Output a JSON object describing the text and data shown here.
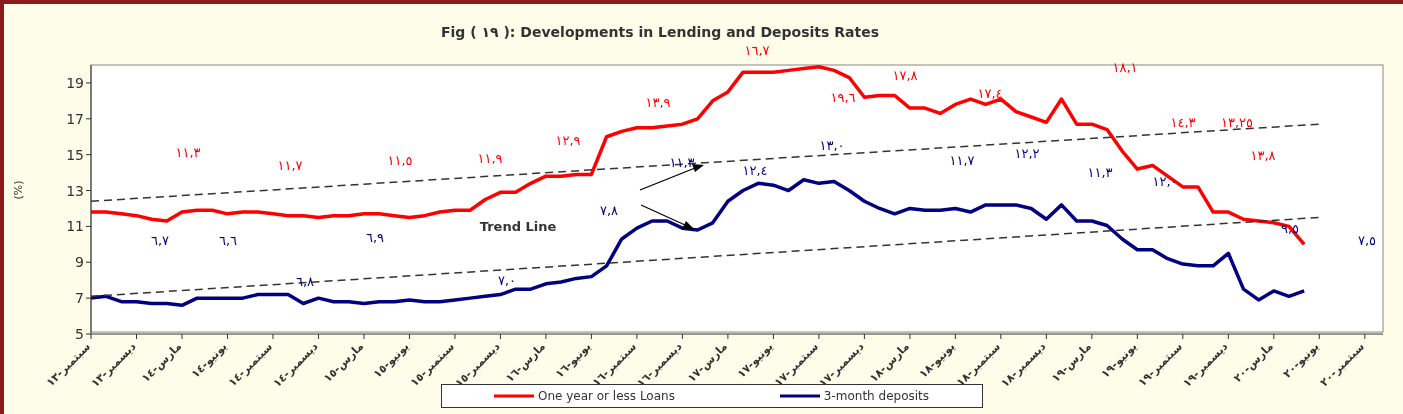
{
  "chart_data": {
    "type": "line",
    "title": "Fig ( ١٩ ): Developments in Lending and Deposits Rates",
    "ylabel": "(%)",
    "categories": [
      "سبتمبر-١٣",
      null,
      null,
      "ديسمبر-١٣",
      null,
      null,
      "مارس-١٤",
      null,
      null,
      "يونيو-١٤",
      null,
      null,
      "سبتمبر-١٤",
      null,
      null,
      "ديسمبر-١٤",
      null,
      null,
      "مارس-١٥",
      null,
      null,
      "يونيو-١٥",
      null,
      null,
      "سبتمبر-١٥",
      null,
      null,
      "ديسمبر-١٥",
      null,
      null,
      "مارس-١٦",
      null,
      null,
      "يونيو-١٦",
      null,
      null,
      "سبتمبر-١٦",
      null,
      null,
      "ديسمبر-١٦",
      null,
      null,
      "مارس-١٧",
      null,
      null,
      "يونيو-١٧",
      null,
      null,
      "سبتمبر-١٧",
      null,
      null,
      "ديسمبر-١٧",
      null,
      null,
      "مارس-١٨",
      null,
      null,
      "يونيو-١٨",
      null,
      null,
      "سبتمبر-١٨",
      null,
      null,
      "ديسمبر-١٨",
      null,
      null,
      "مارس-١٩",
      null,
      null,
      "يونيو-١٩",
      null,
      null,
      "سبتمبر-١٩",
      null,
      null,
      "ديسمبر-١٩",
      null,
      null,
      "مارس-٢٠",
      null,
      null,
      "يونيو-٢٠",
      null,
      null,
      "سبتمبر-٢٠"
    ],
    "series": [
      {
        "name": "One year or less Loans",
        "color": "#ff0000",
        "values": [
          11.8,
          11.8,
          11.7,
          11.6,
          11.4,
          11.3,
          11.8,
          11.9,
          11.9,
          11.7,
          11.8,
          11.8,
          11.7,
          11.6,
          11.6,
          11.5,
          11.6,
          11.6,
          11.7,
          11.7,
          11.6,
          11.5,
          11.6,
          11.8,
          11.9,
          11.9,
          12.5,
          12.9,
          12.9,
          13.4,
          13.8,
          13.8,
          13.9,
          13.9,
          16.0,
          16.3,
          16.5,
          16.5,
          16.6,
          16.7,
          17.0,
          18.0,
          18.5,
          19.6,
          19.6,
          19.6,
          19.7,
          19.8,
          19.9,
          19.7,
          19.3,
          18.2,
          18.3,
          18.3,
          17.6,
          17.6,
          17.3,
          17.8,
          18.1,
          17.8,
          18.1,
          17.4,
          17.1,
          16.8,
          18.1,
          16.7,
          16.7,
          16.4,
          15.2,
          14.2,
          14.4,
          13.8,
          13.2,
          13.2,
          11.8,
          11.8,
          11.4,
          11.3,
          11.2,
          11.0,
          10.0,
          null,
          null,
          null,
          null
        ]
      },
      {
        "name": "3-month deposits",
        "color": "#000080",
        "values": [
          7.0,
          7.1,
          6.8,
          6.8,
          6.7,
          6.7,
          6.6,
          7.0,
          7.0,
          7.0,
          7.0,
          7.2,
          7.2,
          7.2,
          6.7,
          7.0,
          6.8,
          6.8,
          6.7,
          6.8,
          6.8,
          6.9,
          6.8,
          6.8,
          6.9,
          7.0,
          7.1,
          7.2,
          7.5,
          7.5,
          7.8,
          7.9,
          8.1,
          8.2,
          8.8,
          10.3,
          10.9,
          11.3,
          11.3,
          10.9,
          10.8,
          11.2,
          12.4,
          13.0,
          13.4,
          13.3,
          13.0,
          13.6,
          13.4,
          13.5,
          13.0,
          12.4,
          12.0,
          11.7,
          12.0,
          11.9,
          11.9,
          12.0,
          11.8,
          12.2,
          12.2,
          12.2,
          12.0,
          11.4,
          12.2,
          11.3,
          11.3,
          11.05,
          10.3,
          9.7,
          9.7,
          9.2,
          8.9,
          8.8,
          8.8,
          9.5,
          7.5,
          6.9,
          7.4,
          7.1,
          7.4,
          null,
          null,
          null,
          null
        ]
      },
      {
        "type": "line",
        "color": "#333333",
        "line_style": "dashed",
        "x": [
          "سبتمبر-١٣",
          "يونيو-٢٠"
        ],
        "values": [
          12.4,
          16.7
        ]
      },
      {
        "type": "line",
        "color": "#333333",
        "line_style": "dashed",
        "x": [
          "سبتمبر-١٣",
          "يونيو-٢٠"
        ],
        "values": [
          7.1,
          11.5
        ]
      }
    ],
    "ylim": [
      5,
      20
    ],
    "yticks": [
      5,
      7,
      9,
      11,
      13,
      15,
      17,
      19
    ],
    "grid": false,
    "legend": "bottom",
    "marker": "none",
    "annotations": [
      "Trend Line",
      "١١,٣",
      "١١,٧",
      "١١,٥",
      "١١,٩",
      "١٢,٩",
      "١٣,٩",
      "١٦,٧",
      "١٩,٦",
      "١٧,٨",
      "١٧,٤",
      "١٨,١",
      "١٤,٣",
      "١٣,٢٥",
      "١٣,٨",
      "٦,٧",
      "٦,٦",
      "٦,٩",
      "٦,٨",
      "٧,٠",
      "٧,٨",
      "١١,٣",
      "١٢,٤",
      "١٣,٠",
      "١١,٧",
      "١٢,٢",
      "١١,٣",
      "١٢,٠",
      "٩,٥",
      "٧,٥"
    ]
  }
}
